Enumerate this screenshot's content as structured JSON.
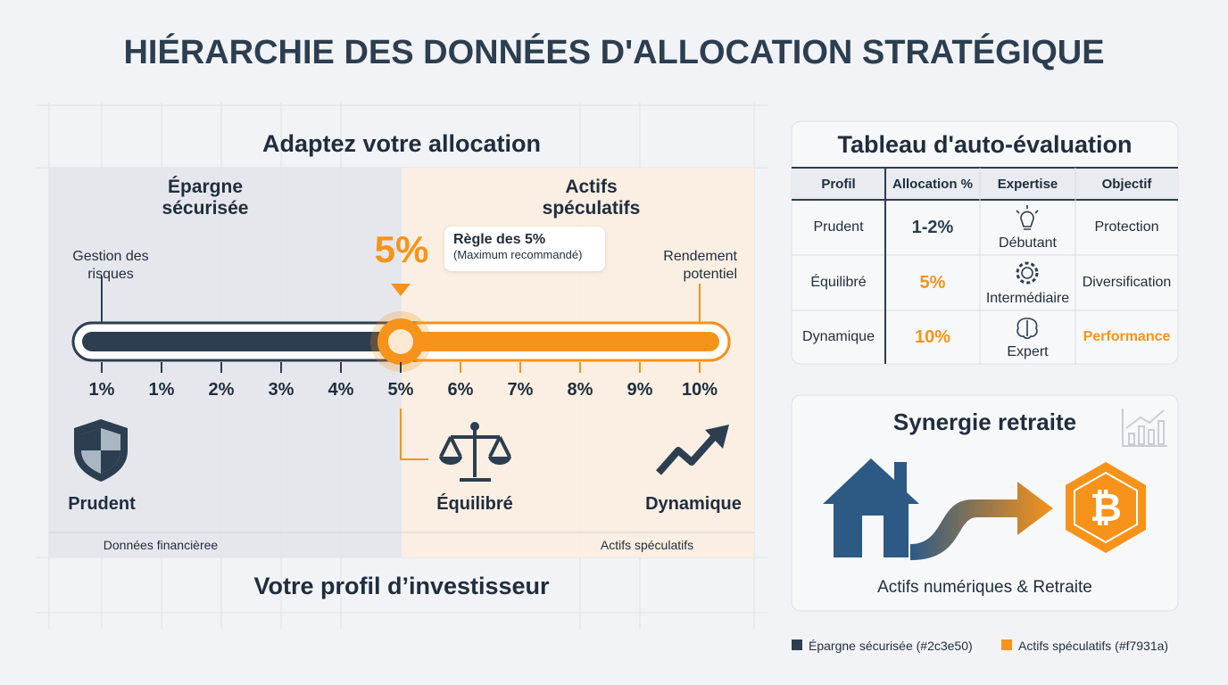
{
  "title": "HIÉRARCHIE DES DONNÉES D'ALLOCATION STRATÉGIQUE",
  "allocation": {
    "title": "Adaptez votre allocation",
    "zones": [
      "Épargne sécurisée",
      "Actifs spéculatifs"
    ],
    "left_note": "Gestion des risques",
    "right_note": "Rendement potentiel",
    "marker": "5%",
    "rule": {
      "title": "Règle des 5%",
      "subtitle": "(Maximum recommandé)"
    },
    "scale": [
      "1%",
      "1%",
      "2%",
      "3%",
      "4%",
      "5%",
      "6%",
      "7%",
      "8%",
      "9%",
      "10%"
    ],
    "profiles": [
      "Prudent",
      "Équilibré",
      "Dynamique"
    ],
    "footer_labels": [
      "Données financièree",
      "Actifs spéculatifs"
    ],
    "footer": "Votre profil d’investisseur"
  },
  "table": {
    "title": "Tableau d'auto-évaluation",
    "headers": [
      "Profil",
      "Allocation %",
      "Expertise",
      "Objectif"
    ],
    "rows": [
      [
        "Prudent",
        "1-2%",
        "Débutant",
        "Protection"
      ],
      [
        "Équilibré",
        "5%",
        "Intermédiaire",
        "Diversification"
      ],
      [
        "Dynamique",
        "10%",
        "Expert",
        "Performance"
      ]
    ]
  },
  "synergy": {
    "title": "Synergie retraite",
    "caption": "Actifs numériques & Retraite"
  },
  "legend": [
    "Épargne sécurisée (#2c3e50)",
    "Actifs spéculatifs (#f7931a)"
  ]
}
